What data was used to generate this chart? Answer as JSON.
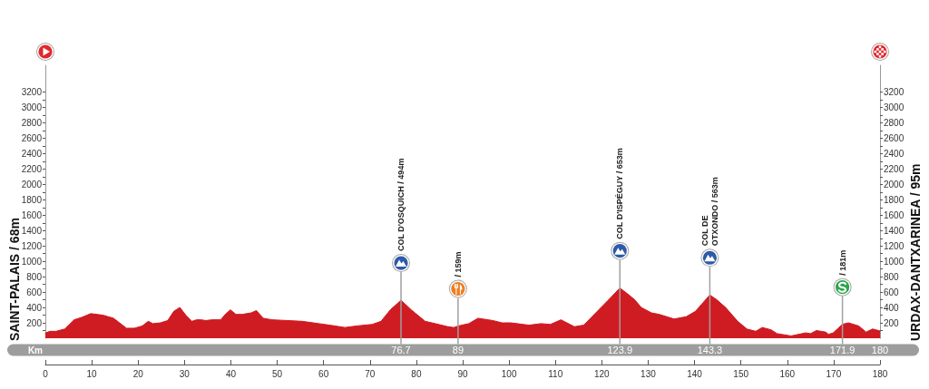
{
  "chart_data": {
    "type": "area",
    "color": "#cf1b22",
    "x": [
      0,
      1,
      2.3,
      4.2,
      6.2,
      7.8,
      9.8,
      12.4,
      14.7,
      16,
      17.5,
      19.2,
      20.9,
      22.2,
      23.2,
      24.8,
      26.4,
      27.7,
      29,
      30.3,
      31.6,
      32.6,
      33.6,
      34.6,
      35.9,
      37.8,
      38.8,
      39.9,
      41.1,
      42.4,
      44.4,
      45.5,
      47,
      48.9,
      52.2,
      55.4,
      59,
      61.3,
      64.6,
      67.2,
      70.5,
      72.4,
      74.4,
      76.7,
      78.9,
      81.9,
      84.1,
      86.8,
      88.1,
      89,
      91.3,
      93.3,
      96.5,
      98.5,
      100.4,
      104.3,
      106.9,
      108.9,
      111.2,
      114.1,
      116.1,
      118.7,
      121.3,
      123.9,
      125.5,
      127.1,
      128.5,
      130.7,
      132.4,
      135.6,
      138.2,
      140.2,
      141.5,
      143.3,
      144.8,
      146.7,
      149.3,
      151.3,
      153.2,
      154.6,
      156.5,
      157.8,
      160.8,
      162.4,
      164,
      165,
      166.3,
      168.3,
      168.9,
      169.9,
      171.9,
      173.2,
      175.4,
      177,
      178.4,
      180
    ],
    "values": [
      68,
      90,
      90,
      120,
      240,
      270,
      320,
      300,
      260,
      200,
      130,
      130,
      160,
      220,
      190,
      200,
      230,
      350,
      400,
      300,
      220,
      240,
      240,
      230,
      240,
      240,
      310,
      370,
      310,
      310,
      330,
      360,
      260,
      240,
      230,
      220,
      190,
      170,
      140,
      160,
      180,
      220,
      370,
      494,
      370,
      220,
      190,
      150,
      140,
      159,
      190,
      260,
      230,
      200,
      200,
      170,
      190,
      180,
      240,
      150,
      170,
      330,
      490,
      653,
      580,
      500,
      400,
      330,
      310,
      250,
      280,
      350,
      440,
      563,
      500,
      400,
      220,
      120,
      90,
      140,
      110,
      60,
      30,
      50,
      70,
      60,
      100,
      80,
      50,
      70,
      181,
      200,
      160,
      80,
      120,
      95
    ],
    "ylabel": "SAINT-PALAIS / 68m",
    "y2label": "URDAX-DANTXARINEA / 95m",
    "x2label": "Km",
    "xlim": [
      0,
      180
    ],
    "xticks": [
      0,
      10,
      20,
      30,
      40,
      50,
      60,
      70,
      80,
      90,
      100,
      110,
      120,
      130,
      140,
      150,
      160,
      170,
      180
    ],
    "x2lim": [
      0,
      180
    ],
    "x2ticks": [
      76.7,
      89,
      123.9,
      143.3,
      171.9,
      180
    ],
    "ylim": [
      0,
      3550
    ],
    "yticks": [
      {
        "value": 100,
        "label": null
      },
      200,
      {
        "value": 300,
        "label": null
      },
      400,
      {
        "value": 500,
        "label": null
      },
      600,
      {
        "value": 700,
        "label": null
      },
      800,
      {
        "value": 900,
        "label": null
      },
      1000,
      {
        "value": 1100,
        "label": null
      },
      1200,
      {
        "value": 1300,
        "label": null
      },
      1400,
      {
        "value": 1500,
        "label": null
      },
      1600,
      {
        "value": 1700,
        "label": null
      },
      1800,
      {
        "value": 1900,
        "label": null
      },
      2000,
      {
        "value": 2100,
        "label": null
      },
      2200,
      {
        "value": 2300,
        "label": null
      },
      2400,
      {
        "value": 2500,
        "label": null
      },
      2600,
      {
        "value": 2700,
        "label": null
      },
      2800,
      {
        "value": 2900,
        "label": null
      },
      3000,
      {
        "value": 3100,
        "label": null
      },
      3200
    ],
    "y2lim": [
      0,
      3550
    ],
    "y2ticks": [
      {
        "value": 100,
        "label": null
      },
      200,
      {
        "value": 300,
        "label": null
      },
      400,
      {
        "value": 500,
        "label": null
      },
      600,
      {
        "value": 700,
        "label": null
      },
      800,
      {
        "value": 900,
        "label": null
      },
      1000,
      {
        "value": 1100,
        "label": null
      },
      1200,
      {
        "value": 1300,
        "label": null
      },
      1400,
      {
        "value": 1500,
        "label": null
      },
      1600,
      {
        "value": 1700,
        "label": null
      },
      1800,
      {
        "value": 1900,
        "label": null
      },
      2000,
      {
        "value": 2100,
        "label": null
      },
      2200,
      {
        "value": 2300,
        "label": null
      },
      2400,
      {
        "value": 2500,
        "label": null
      },
      2600,
      {
        "value": 2700,
        "label": null
      },
      2800,
      {
        "value": 2900,
        "label": null
      },
      3000,
      {
        "value": 3100,
        "label": null
      },
      3200
    ],
    "annotations": [
      "COL D'OSQUICH / 494m",
      "/ 159m",
      "COL D'ISPÉGUY / 653m",
      "COL DE\nOTXONDO / 563m",
      "/ 181m"
    ]
  }
}
